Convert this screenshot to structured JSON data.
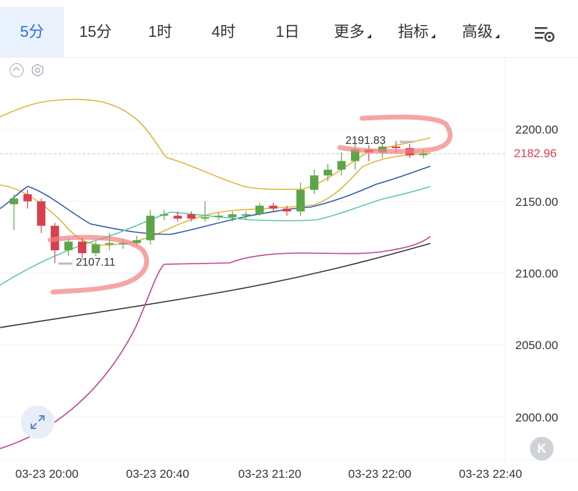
{
  "tabs": [
    {
      "label": "5分",
      "active": true
    },
    {
      "label": "15分",
      "active": false
    },
    {
      "label": "1时",
      "active": false
    },
    {
      "label": "4时",
      "active": false
    },
    {
      "label": "1日",
      "active": false
    },
    {
      "label": "更多",
      "active": false,
      "dropdown": true
    },
    {
      "label": "指标",
      "active": false,
      "dropdown": true
    },
    {
      "label": "高级",
      "active": false,
      "dropdown": true
    }
  ],
  "settings_icon": "chart-settings-icon",
  "chart_data": {
    "type": "candlestick",
    "y_axis_labels": [
      "2200.00",
      "2150.00",
      "2100.00",
      "2050.00",
      "2000.00"
    ],
    "y_axis_values": [
      2200,
      2150,
      2100,
      2050,
      2000
    ],
    "x_axis_labels": [
      "03-23 20:00",
      "03-23 20:40",
      "03-23 21:20",
      "03-23 22:00",
      "03-23 22:40"
    ],
    "current_price": "2182.96",
    "annotations": {
      "high_label": "2191.83",
      "low_label": "2107.11"
    },
    "colors": {
      "up": "#5da54a",
      "down": "#d9404e",
      "ma_yellow": "#e2b23a",
      "ma_blue": "#2e5aa8",
      "ma_teal": "#5cc8a8",
      "ma_black": "#333333",
      "boll_pink": "#c0408a",
      "highlight": "#f08080"
    },
    "candles": [
      {
        "o": 2148,
        "c": 2152,
        "h": 2155,
        "l": 2130
      },
      {
        "o": 2155,
        "c": 2150,
        "h": 2158,
        "l": 2145
      },
      {
        "o": 2150,
        "c": 2133,
        "h": 2152,
        "l": 2128
      },
      {
        "o": 2133,
        "c": 2116,
        "h": 2135,
        "l": 2107
      },
      {
        "o": 2116,
        "c": 2122,
        "h": 2124,
        "l": 2112
      },
      {
        "o": 2122,
        "c": 2114,
        "h": 2125,
        "l": 2110
      },
      {
        "o": 2114,
        "c": 2120,
        "h": 2122,
        "l": 2112
      },
      {
        "o": 2120,
        "c": 2121,
        "h": 2128,
        "l": 2116
      },
      {
        "o": 2121,
        "c": 2121,
        "h": 2124,
        "l": 2117
      },
      {
        "o": 2121,
        "c": 2123,
        "h": 2126,
        "l": 2119
      },
      {
        "o": 2123,
        "c": 2140,
        "h": 2144,
        "l": 2120
      },
      {
        "o": 2140,
        "c": 2141,
        "h": 2144,
        "l": 2137
      },
      {
        "o": 2140,
        "c": 2138,
        "h": 2143,
        "l": 2136
      },
      {
        "o": 2141,
        "c": 2138,
        "h": 2143,
        "l": 2136
      },
      {
        "o": 2138,
        "c": 2139,
        "h": 2150,
        "l": 2136
      },
      {
        "o": 2139,
        "c": 2140,
        "h": 2142,
        "l": 2137
      },
      {
        "o": 2139,
        "c": 2141,
        "h": 2143,
        "l": 2136
      },
      {
        "o": 2140,
        "c": 2141,
        "h": 2143,
        "l": 2137
      },
      {
        "o": 2141,
        "c": 2147,
        "h": 2149,
        "l": 2140
      },
      {
        "o": 2147,
        "c": 2145,
        "h": 2149,
        "l": 2143
      },
      {
        "o": 2145,
        "c": 2143,
        "h": 2147,
        "l": 2140
      },
      {
        "o": 2143,
        "c": 2158,
        "h": 2163,
        "l": 2140
      },
      {
        "o": 2158,
        "c": 2168,
        "h": 2172,
        "l": 2155
      },
      {
        "o": 2168,
        "c": 2172,
        "h": 2176,
        "l": 2164
      },
      {
        "o": 2172,
        "c": 2178,
        "h": 2184,
        "l": 2168
      },
      {
        "o": 2178,
        "c": 2186,
        "h": 2190,
        "l": 2172
      },
      {
        "o": 2186,
        "c": 2184,
        "h": 2189,
        "l": 2178
      },
      {
        "o": 2184,
        "c": 2188,
        "h": 2190,
        "l": 2180
      },
      {
        "o": 2188,
        "c": 2187,
        "h": 2192,
        "l": 2184
      },
      {
        "o": 2187,
        "c": 2182,
        "h": 2190,
        "l": 2180
      },
      {
        "o": 2183,
        "c": 2183,
        "h": 2186,
        "l": 2180
      }
    ]
  }
}
